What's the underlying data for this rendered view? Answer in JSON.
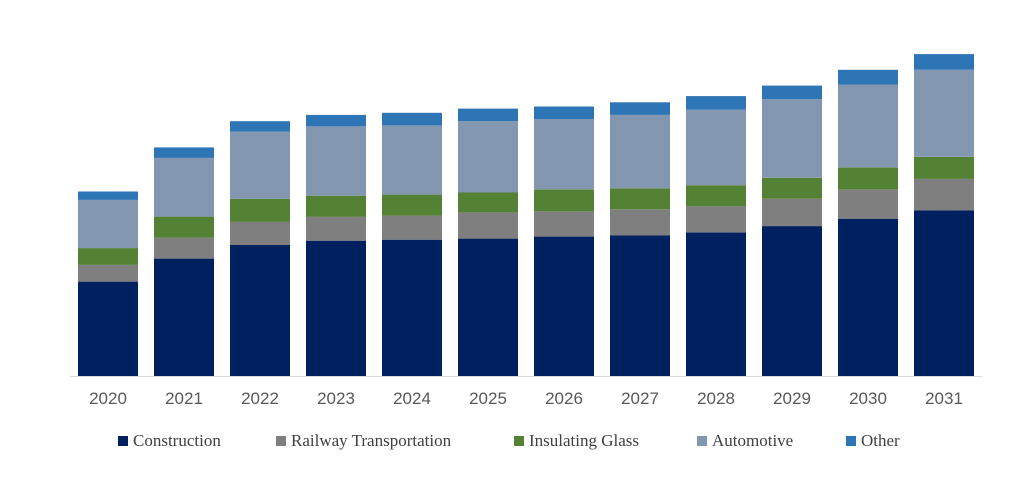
{
  "chart_data": {
    "type": "bar",
    "stacked": true,
    "title": "",
    "xlabel": "",
    "ylabel": "",
    "ylim": [
      0,
      33
    ],
    "grid": false,
    "legend_position": "bottom",
    "categories": [
      "2020",
      "2021",
      "2022",
      "2023",
      "2024",
      "2025",
      "2026",
      "2027",
      "2028",
      "2029",
      "2030",
      "2031"
    ],
    "series": [
      {
        "name": "Construction",
        "color": "#002060",
        "values": [
          9.0,
          11.2,
          12.5,
          12.9,
          13.0,
          13.1,
          13.3,
          13.4,
          13.7,
          14.3,
          15.0,
          15.8
        ]
      },
      {
        "name": "Railway Transportation",
        "color": "#7f7f7f",
        "values": [
          1.6,
          2.0,
          2.2,
          2.3,
          2.3,
          2.5,
          2.4,
          2.5,
          2.5,
          2.6,
          2.8,
          3.0
        ]
      },
      {
        "name": "Insulating Glass",
        "color": "#548235",
        "values": [
          1.6,
          2.0,
          2.2,
          2.0,
          2.0,
          1.9,
          2.1,
          2.0,
          2.0,
          2.0,
          2.1,
          2.1
        ]
      },
      {
        "name": "Automotive",
        "color": "#8497b0",
        "values": [
          4.6,
          5.6,
          6.4,
          6.6,
          6.6,
          6.8,
          6.7,
          7.0,
          7.2,
          7.5,
          7.9,
          8.3
        ]
      },
      {
        "name": "Other",
        "color": "#2e75b6",
        "values": [
          0.8,
          1.0,
          1.0,
          1.1,
          1.2,
          1.2,
          1.2,
          1.2,
          1.3,
          1.3,
          1.4,
          1.5
        ]
      }
    ]
  }
}
